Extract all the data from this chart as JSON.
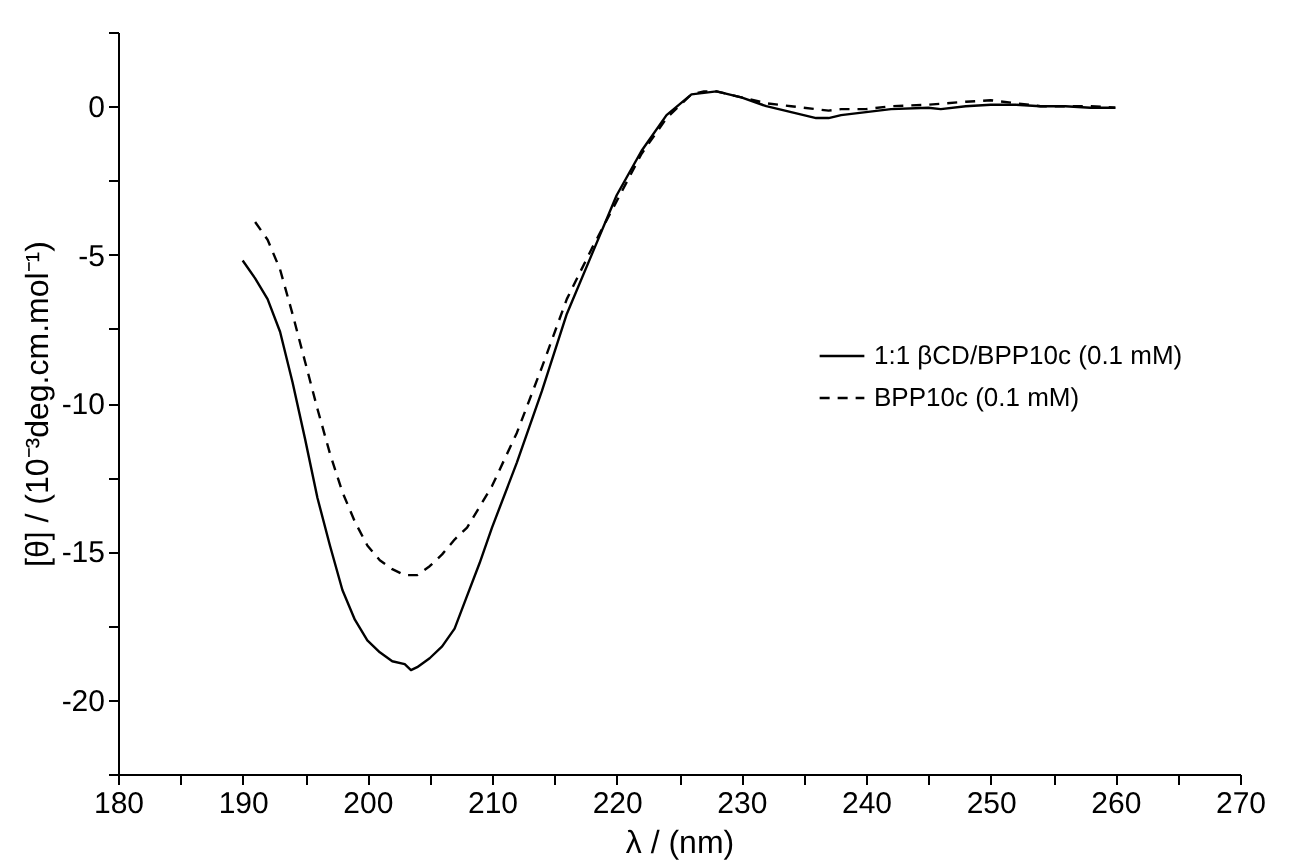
{
  "chart_data": {
    "type": "line",
    "xlabel": "λ / (nm)",
    "ylabel": "[θ] / (10⁻³deg.cm.mol⁻¹)",
    "xlim": [
      180,
      270
    ],
    "ylim": [
      -22.5,
      2.5
    ],
    "xticks": [
      180,
      {
        "value": 185,
        "label": null
      },
      190,
      {
        "value": 195,
        "label": null
      },
      200,
      {
        "value": 205,
        "label": null
      },
      210,
      {
        "value": 215,
        "label": null
      },
      220,
      {
        "value": 225,
        "label": null
      },
      230,
      {
        "value": 235,
        "label": null
      },
      240,
      {
        "value": 245,
        "label": null
      },
      250,
      {
        "value": 255,
        "label": null
      },
      260,
      {
        "value": 265,
        "label": null
      },
      270
    ],
    "yticks": [
      {
        "value": -22.5,
        "label": null
      },
      -20,
      {
        "value": -17.5,
        "label": null
      },
      -15,
      {
        "value": -12.5,
        "label": null
      },
      -10,
      {
        "value": -7.5,
        "label": null
      },
      -5,
      {
        "value": -2.5,
        "label": null
      },
      0,
      {
        "value": 2.5,
        "label": null
      }
    ],
    "grid": false,
    "legend": "right",
    "marker": "none",
    "series": [
      {
        "name": "1:1 βCD/BPP10c (0.1 mM)",
        "color": "#000000",
        "line_style": "solid",
        "x": [
          190,
          191,
          192,
          193,
          194,
          195,
          196,
          197,
          198,
          199,
          200,
          201,
          202,
          203,
          203.5,
          204,
          205,
          206,
          207,
          208,
          209,
          210,
          212,
          214,
          216,
          218,
          220,
          222,
          224,
          226,
          228,
          230,
          232,
          234,
          236,
          237,
          238,
          240,
          242,
          245,
          246,
          248,
          250,
          252,
          254,
          256,
          258,
          260
        ],
        "values": [
          -5.2,
          -5.8,
          -6.5,
          -7.6,
          -9.3,
          -11.2,
          -13.2,
          -14.8,
          -16.3,
          -17.3,
          -18.0,
          -18.4,
          -18.7,
          -18.8,
          -19.0,
          -18.9,
          -18.6,
          -18.2,
          -17.6,
          -16.5,
          -15.4,
          -14.2,
          -12.0,
          -9.6,
          -7.0,
          -5.0,
          -3.0,
          -1.5,
          -0.3,
          0.4,
          0.5,
          0.3,
          0.0,
          -0.2,
          -0.4,
          -0.4,
          -0.3,
          -0.2,
          -0.1,
          -0.05,
          -0.1,
          0.0,
          0.05,
          0.05,
          0.0,
          0.0,
          -0.05,
          -0.05
        ]
      },
      {
        "name": "BPP10c (0.1 mM)",
        "color": "#000000",
        "line_style": "dashed",
        "x": [
          191,
          192,
          193,
          194,
          195,
          196,
          197,
          198,
          199,
          200,
          201,
          202,
          203,
          204,
          205,
          206,
          207,
          208,
          210,
          212,
          214,
          216,
          218,
          220,
          222,
          224,
          226,
          227,
          228,
          230,
          232,
          234,
          236,
          237,
          238,
          240,
          242,
          245,
          248,
          250,
          252,
          254,
          256,
          258,
          260
        ],
        "values": [
          -3.9,
          -4.5,
          -5.5,
          -7.0,
          -8.6,
          -10.2,
          -11.7,
          -13.0,
          -14.0,
          -14.8,
          -15.3,
          -15.6,
          -15.8,
          -15.8,
          -15.5,
          -15.1,
          -14.6,
          -14.2,
          -12.8,
          -11.0,
          -8.8,
          -6.5,
          -4.8,
          -3.2,
          -1.6,
          -0.4,
          0.4,
          0.5,
          0.5,
          0.3,
          0.1,
          0.0,
          -0.1,
          -0.15,
          -0.1,
          -0.1,
          0.0,
          0.05,
          0.15,
          0.2,
          0.1,
          0.0,
          0.0,
          0.0,
          -0.05
        ]
      }
    ]
  }
}
